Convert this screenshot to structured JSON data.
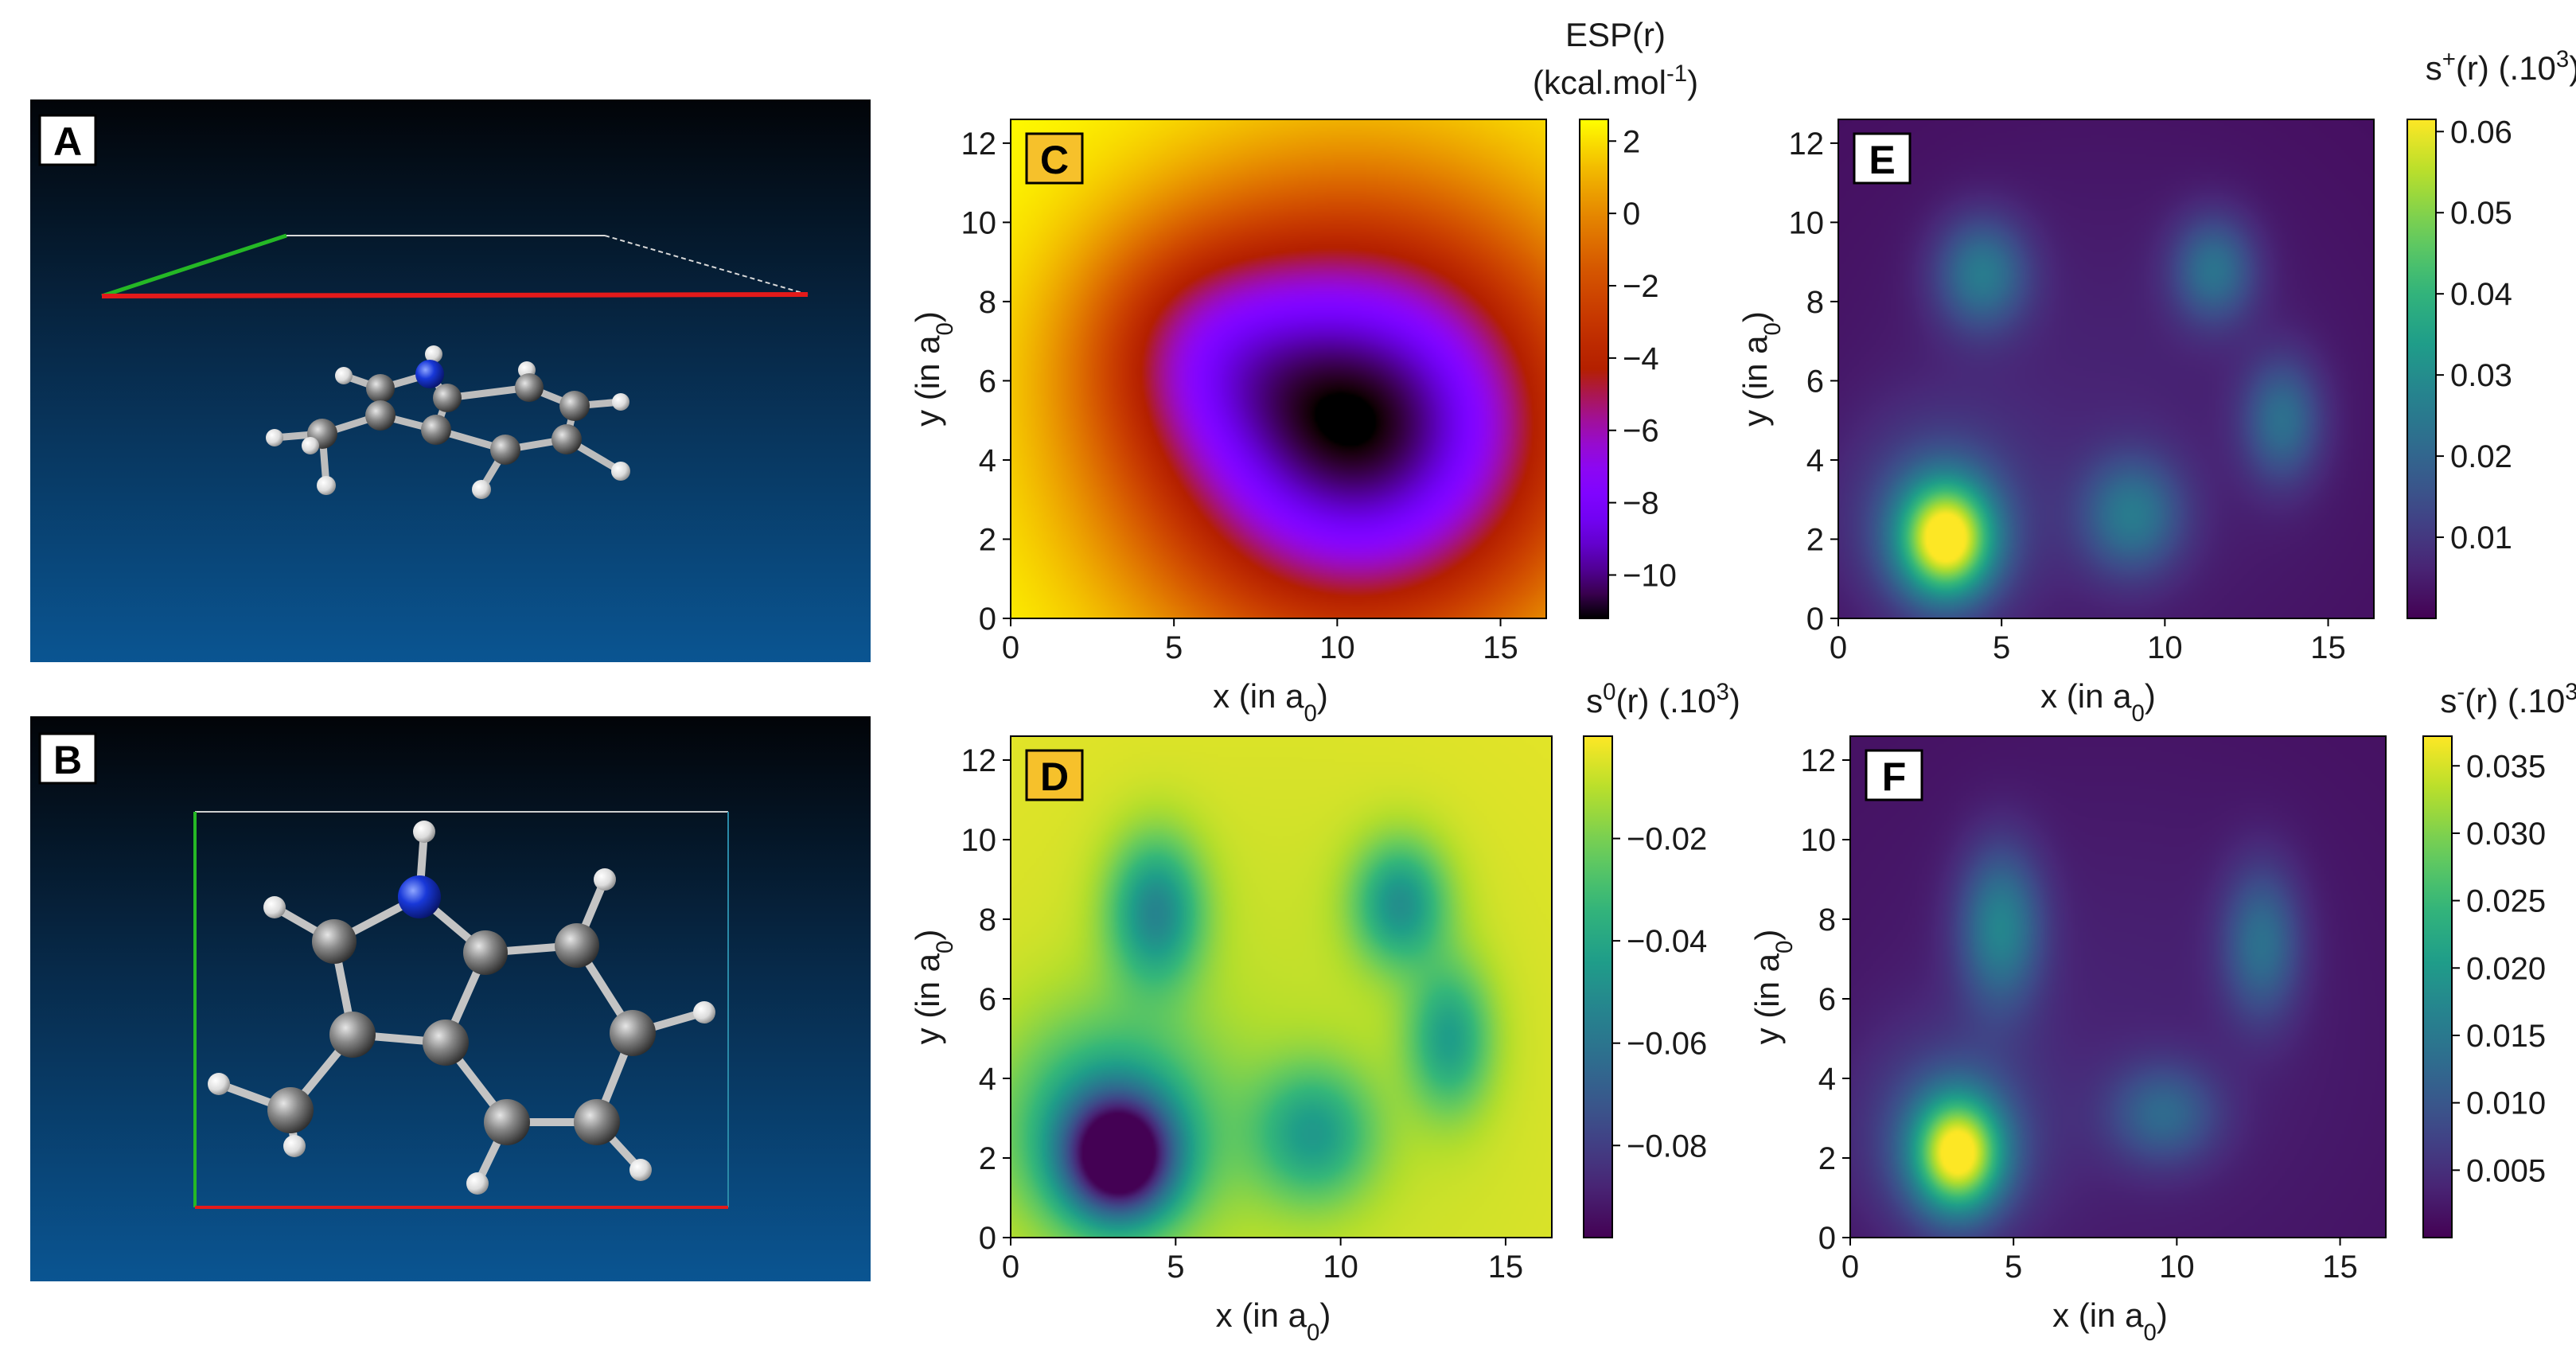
{
  "chart_data": [
    {
      "panel": "A",
      "type": "other",
      "description": "3D molecular model (side view)",
      "colors": {
        "bg_top": "#020408",
        "bg_bottom": "#0a5592",
        "carbon": "#8a8a8a",
        "hydrogen": "#ededed",
        "nitrogen": "#1838d8",
        "axis_x": "#e31a1a",
        "axis_y": "#25b825"
      }
    },
    {
      "panel": "B",
      "type": "other",
      "description": "3D molecular model (top view)",
      "colors": {
        "bg_top": "#020408",
        "bg_bottom": "#0a5592",
        "carbon": "#8a8a8a",
        "hydrogen": "#ededed",
        "nitrogen": "#1838d8",
        "axis_x": "#e31a1a",
        "axis_y": "#25b825"
      }
    },
    {
      "panel": "C",
      "type": "heatmap",
      "colormap": "gnuplot",
      "colorbar_title": [
        "ESP(r)",
        "(kcal.mol",
        "-1",
        ")"
      ],
      "colorbar_ticks": [
        2,
        0,
        -2,
        -4,
        -6,
        -8,
        -10
      ],
      "colorbar_tick_labels": [
        "2",
        "0",
        "−2",
        "−4",
        "−6",
        "−8",
        "−10"
      ],
      "colorbar_range": [
        -11.2,
        2.6
      ],
      "xlabel": [
        "x (in a",
        "0",
        ")"
      ],
      "ylabel": [
        "y (in a",
        "0",
        ")"
      ],
      "xlim": [
        0,
        16.4
      ],
      "ylim": [
        0,
        12.6
      ],
      "xticks": [
        0,
        5,
        10,
        15
      ],
      "yticks": [
        0,
        2,
        4,
        6,
        8,
        10,
        12
      ],
      "features": [
        {
          "x": 10.6,
          "y": 4.9,
          "value": -11.2,
          "note": "ESP minimum"
        }
      ]
    },
    {
      "panel": "D",
      "type": "heatmap",
      "colormap": "viridis",
      "colorbar_title": [
        "s",
        "0",
        "(r) (.10",
        "3",
        ")"
      ],
      "colorbar_ticks": [
        -0.02,
        -0.04,
        -0.06,
        -0.08
      ],
      "colorbar_tick_labels": [
        "−0.02",
        "−0.04",
        "−0.06",
        "−0.08"
      ],
      "colorbar_range": [
        -0.098,
        0.0
      ],
      "xlabel": [
        "x (in a",
        "0",
        ")"
      ],
      "ylabel": [
        "y (in a",
        "0",
        ")"
      ],
      "xlim": [
        0,
        16.4
      ],
      "ylim": [
        0,
        12.6
      ],
      "xticks": [
        0,
        5,
        10,
        15
      ],
      "yticks": [
        0,
        2,
        4,
        6,
        8,
        10,
        12
      ],
      "features": [
        {
          "x": 3.3,
          "y": 2.0,
          "value": -0.098
        },
        {
          "x": 4.4,
          "y": 8.2,
          "value": -0.05
        },
        {
          "x": 11.7,
          "y": 8.4,
          "value": -0.045
        },
        {
          "x": 13.3,
          "y": 5.2,
          "value": -0.035
        },
        {
          "x": 9.2,
          "y": 2.6,
          "value": -0.04
        }
      ]
    },
    {
      "panel": "E",
      "type": "heatmap",
      "colormap": "viridis",
      "colorbar_title": [
        "s",
        "+",
        "(r) (.10",
        "3",
        ")"
      ],
      "colorbar_ticks": [
        0.06,
        0.05,
        0.04,
        0.03,
        0.02,
        0.01
      ],
      "colorbar_tick_labels": [
        "0.06",
        "0.05",
        "0.04",
        "0.03",
        "0.02",
        "0.01"
      ],
      "colorbar_range": [
        0.0,
        0.0615
      ],
      "xlabel": [
        "x (in a",
        "0",
        ")"
      ],
      "ylabel": [
        "y (in a",
        "0",
        ")"
      ],
      "xlim": [
        0,
        16.4
      ],
      "ylim": [
        0,
        12.6
      ],
      "xticks": [
        0,
        5,
        10,
        15
      ],
      "yticks": [
        0,
        2,
        4,
        6,
        8,
        10,
        12
      ],
      "features": [
        {
          "x": 3.3,
          "y": 2.0,
          "value": 0.06
        },
        {
          "x": 4.4,
          "y": 8.7,
          "value": 0.025
        },
        {
          "x": 11.5,
          "y": 8.8,
          "value": 0.023
        },
        {
          "x": 13.6,
          "y": 5.0,
          "value": 0.022
        },
        {
          "x": 9.0,
          "y": 2.6,
          "value": 0.024
        }
      ]
    },
    {
      "panel": "F",
      "type": "heatmap",
      "colormap": "viridis",
      "colorbar_title": [
        "s",
        "-",
        "(r) (.10",
        "3",
        ")"
      ],
      "colorbar_ticks": [
        0.035,
        0.03,
        0.025,
        0.02,
        0.015,
        0.01,
        0.005
      ],
      "colorbar_tick_labels": [
        "0.035",
        "0.030",
        "0.025",
        "0.020",
        "0.015",
        "0.010",
        "0.005"
      ],
      "colorbar_range": [
        0.0,
        0.0372
      ],
      "xlabel": [
        "x (in a",
        "0",
        ")"
      ],
      "ylabel": [
        "y (in a",
        "0",
        ")"
      ],
      "xlim": [
        0,
        16.4
      ],
      "ylim": [
        0,
        12.6
      ],
      "xticks": [
        0,
        5,
        10,
        15
      ],
      "yticks": [
        0,
        2,
        4,
        6,
        8,
        10,
        12
      ],
      "features": [
        {
          "x": 3.3,
          "y": 2.1,
          "value": 0.037
        },
        {
          "x": 4.6,
          "y": 7.8,
          "value": 0.016
        },
        {
          "x": 12.6,
          "y": 7.4,
          "value": 0.012
        },
        {
          "x": 9.6,
          "y": 3.1,
          "value": 0.011
        }
      ]
    }
  ]
}
